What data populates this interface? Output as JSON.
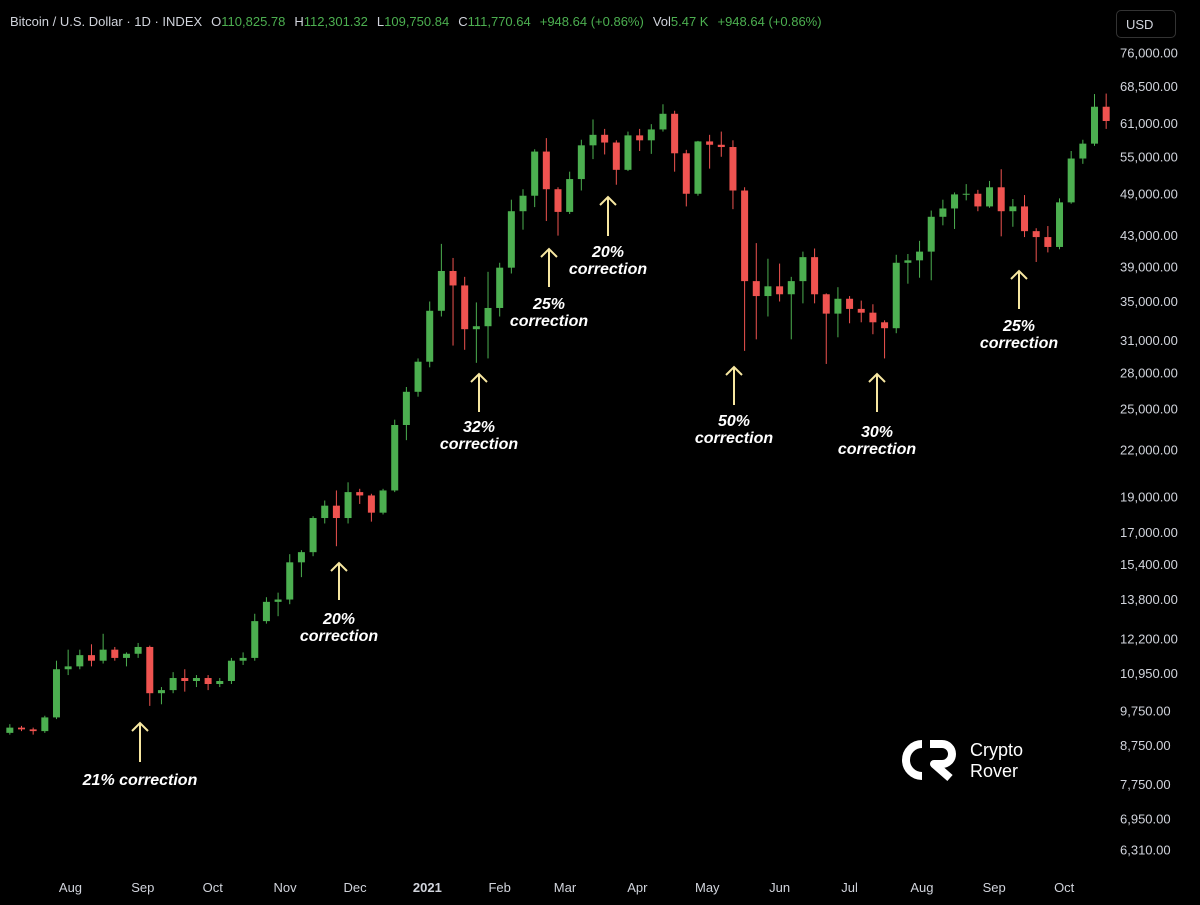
{
  "header": {
    "symbol": "Bitcoin / U.S. Dollar · 1D · INDEX",
    "o_label": "O",
    "o": "110,825.78",
    "h_label": "H",
    "h": "112,301.32",
    "l_label": "L",
    "l": "109,750.84",
    "c_label": "C",
    "c": "111,770.64",
    "change": "+948.64 (+0.86%)",
    "vol_label": "Vol",
    "vol": "5.47 K",
    "vol_change": "+948.64 (+0.86%)",
    "currency": "USD"
  },
  "logo": {
    "line1": "Crypto",
    "line2": "Rover"
  },
  "chart_data": {
    "type": "candlestick",
    "up_color": "#4caf50",
    "down_color": "#ef5350",
    "log_scale": true,
    "grid": false,
    "open": [
      9100,
      9250,
      9200,
      9150,
      9550,
      11100,
      11200,
      11600,
      11400,
      11800,
      11500,
      11650,
      11900,
      10300,
      10400,
      10800,
      10700,
      10800,
      10600,
      10700,
      11400,
      11500,
      12900,
      13700,
      13800,
      15500,
      16000,
      17800,
      18500,
      17800,
      19300,
      19100,
      18100,
      19400,
      23800,
      26400,
      29000,
      34000,
      38500,
      36800,
      32100,
      32400,
      34300,
      38900,
      46400,
      48700,
      55900,
      49700,
      46300,
      51300,
      57000,
      58900,
      57500,
      52800,
      58800,
      57900,
      59900,
      62900,
      55600,
      49000,
      57700,
      57100,
      56700,
      49500,
      37300,
      35600,
      36700,
      35800,
      37300,
      40200,
      35800,
      33700,
      35300,
      34200,
      33800,
      32800,
      32200,
      39500,
      39800,
      40900,
      45600,
      46800,
      48900,
      49000,
      47100,
      50000,
      46400,
      47100,
      43600,
      42800,
      41500,
      47700,
      54700,
      57300,
      64300
    ],
    "high": [
      9350,
      9300,
      9250,
      9600,
      11400,
      11800,
      11800,
      12000,
      12400,
      11900,
      11700,
      12050,
      11950,
      10500,
      11000,
      11100,
      10900,
      10900,
      10800,
      11500,
      11700,
      13200,
      13900,
      14100,
      15900,
      16100,
      17900,
      18800,
      19400,
      19900,
      19500,
      19200,
      19500,
      24200,
      26800,
      29300,
      35000,
      41900,
      40100,
      37800,
      34900,
      38400,
      39500,
      48100,
      49700,
      56300,
      58300,
      50000,
      52500,
      58000,
      61800,
      60000,
      57900,
      59500,
      60000,
      60900,
      64800,
      63500,
      56200,
      57800,
      58900,
      59500,
      57900,
      50000,
      42000,
      40000,
      39400,
      37800,
      40900,
      41300,
      35900,
      36600,
      35600,
      35100,
      34700,
      33000,
      40500,
      40600,
      42300,
      46500,
      48100,
      49200,
      50500,
      49600,
      51000,
      52900,
      48200,
      48800,
      44000,
      44300,
      48300,
      56000,
      58000,
      66900,
      67000
    ],
    "low": [
      9050,
      9150,
      9050,
      9100,
      9500,
      10900,
      11100,
      11200,
      11300,
      11400,
      11200,
      11500,
      9900,
      9950,
      10300,
      10350,
      10500,
      10400,
      10500,
      10600,
      11250,
      11400,
      12800,
      13100,
      13600,
      14800,
      15800,
      17500,
      16300,
      17500,
      18600,
      17600,
      18000,
      19300,
      22700,
      26000,
      28500,
      33400,
      30500,
      30100,
      28900,
      29300,
      33400,
      38200,
      43800,
      47000,
      45000,
      43000,
      46000,
      49500,
      54600,
      55400,
      50400,
      52600,
      56000,
      55500,
      59500,
      52500,
      47100,
      48700,
      53000,
      55000,
      46700,
      30000,
      31100,
      33400,
      35000,
      31100,
      34800,
      34800,
      28800,
      31300,
      32700,
      32800,
      31600,
      29300,
      31700,
      37000,
      37700,
      37400,
      44400,
      43900,
      48000,
      46400,
      46900,
      42900,
      44200,
      42800,
      39600,
      40800,
      41200,
      47500,
      53800,
      56900,
      60000
    ],
    "close": [
      9250,
      9200,
      9150,
      9550,
      11100,
      11200,
      11600,
      11400,
      11800,
      11500,
      11650,
      11900,
      10300,
      10400,
      10800,
      10700,
      10800,
      10600,
      10700,
      11400,
      11500,
      12900,
      13700,
      13800,
      15500,
      16000,
      17800,
      18500,
      17800,
      19300,
      19100,
      18100,
      19400,
      23800,
      26400,
      29000,
      34000,
      38500,
      36800,
      32100,
      32400,
      34300,
      38900,
      46400,
      48700,
      55900,
      49700,
      46300,
      51300,
      57000,
      58900,
      57500,
      52800,
      58800,
      57900,
      59900,
      62900,
      55600,
      49000,
      57700,
      57100,
      56700,
      49500,
      37300,
      35600,
      36700,
      35800,
      37300,
      40200,
      35800,
      33700,
      35300,
      34200,
      33800,
      32800,
      32200,
      39500,
      39800,
      40900,
      45600,
      46800,
      48900,
      49000,
      47100,
      50000,
      46400,
      47100,
      43600,
      42800,
      41500,
      47700,
      54700,
      57300,
      64300,
      61500
    ],
    "xlim": [
      -0.5,
      94.5
    ],
    "xticks": [
      {
        "value": 5.2,
        "label": "Aug"
      },
      {
        "value": 11.4,
        "label": "Sep"
      },
      {
        "value": 17.4,
        "label": "Oct"
      },
      {
        "value": 23.6,
        "label": "Nov"
      },
      {
        "value": 29.6,
        "label": "Dec"
      },
      {
        "value": 35.8,
        "label": "2021"
      },
      {
        "value": 42,
        "label": "Feb"
      },
      {
        "value": 47.6,
        "label": "Mar"
      },
      {
        "value": 53.8,
        "label": "Apr"
      },
      {
        "value": 59.8,
        "label": "May"
      },
      {
        "value": 66,
        "label": "Jun"
      },
      {
        "value": 72,
        "label": "Jul"
      },
      {
        "value": 78.2,
        "label": "Aug"
      },
      {
        "value": 84.4,
        "label": "Sep"
      },
      {
        "value": 90.4,
        "label": "Oct"
      }
    ],
    "ylim": [
      5930,
      79200
    ],
    "yticks": [
      {
        "value": 76000,
        "label": "76,000.00"
      },
      {
        "value": 68500,
        "label": "68,500.00"
      },
      {
        "value": 61000,
        "label": "61,000.00"
      },
      {
        "value": 55000,
        "label": "55,000.00"
      },
      {
        "value": 49000,
        "label": "49,000.00"
      },
      {
        "value": 43000,
        "label": "43,000.00"
      },
      {
        "value": 39000,
        "label": "39,000.00"
      },
      {
        "value": 35000,
        "label": "35,000.00"
      },
      {
        "value": 31000,
        "label": "31,000.00"
      },
      {
        "value": 28000,
        "label": "28,000.00"
      },
      {
        "value": 25000,
        "label": "25,000.00"
      },
      {
        "value": 22000,
        "label": "22,000.00"
      },
      {
        "value": 19000,
        "label": "19,000.00"
      },
      {
        "value": 17000,
        "label": "17,000.00"
      },
      {
        "value": 15400,
        "label": "15,400.00"
      },
      {
        "value": 13800,
        "label": "13,800.00"
      },
      {
        "value": 12200,
        "label": "12,200.00"
      },
      {
        "value": 10950,
        "label": "10,950.00"
      },
      {
        "value": 9750,
        "label": "9,750.00"
      },
      {
        "value": 8750,
        "label": "8,750.00"
      },
      {
        "value": 7750,
        "label": "7,750.00"
      },
      {
        "value": 6950,
        "label": "6,950.00"
      },
      {
        "value": 6310,
        "label": "6,310.00"
      }
    ],
    "annotations": [
      "21% correction",
      "20% correction",
      "32% correction",
      "25% correction",
      "20% correction",
      "50% correction",
      "30% correction",
      "25% correction"
    ]
  }
}
